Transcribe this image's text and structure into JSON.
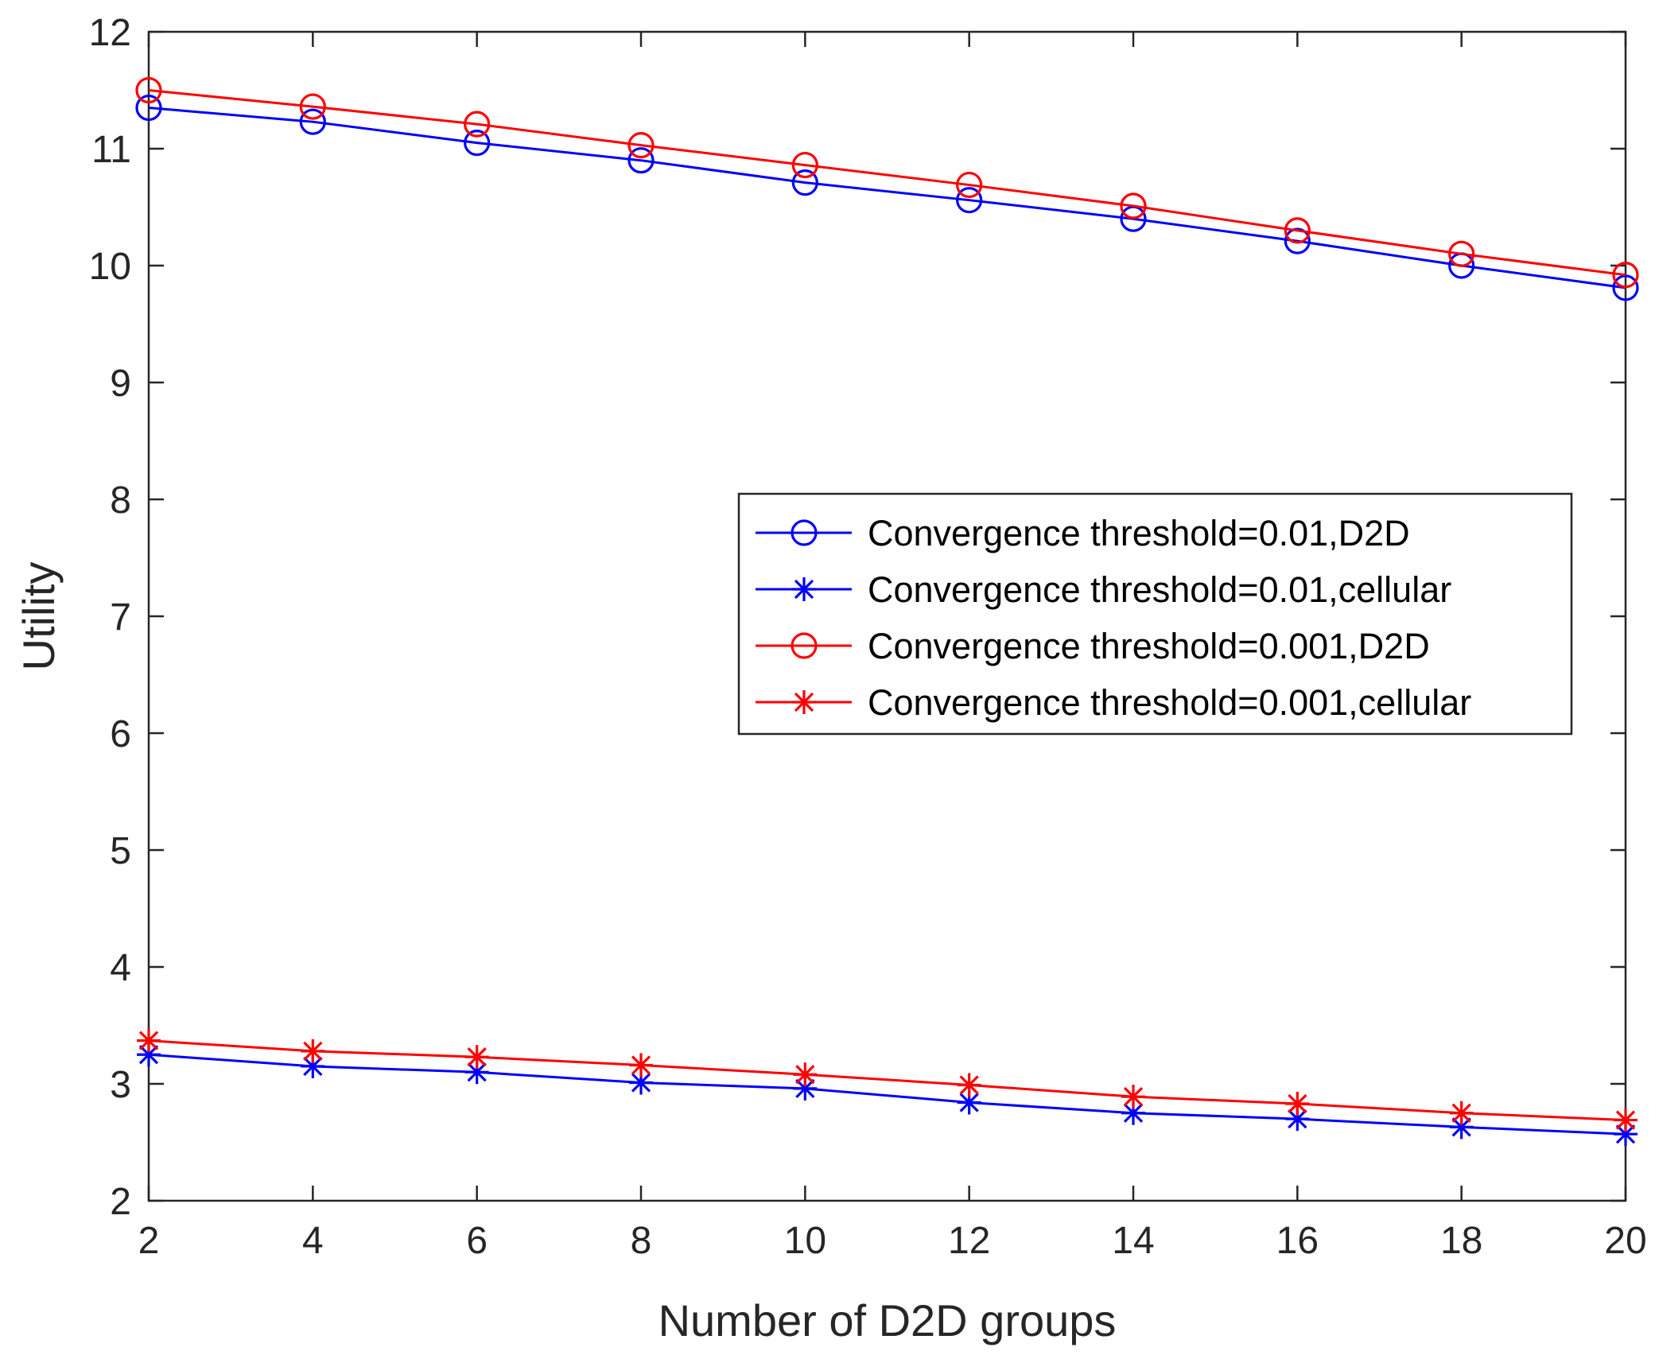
{
  "chart_data": {
    "type": "line",
    "title": "",
    "xlabel": "Number of D2D groups",
    "ylabel": "Utility",
    "xlim": [
      2,
      20
    ],
    "ylim": [
      2,
      12
    ],
    "xticks": [
      2,
      4,
      6,
      8,
      10,
      12,
      14,
      16,
      18,
      20
    ],
    "yticks": [
      2,
      3,
      4,
      5,
      6,
      7,
      8,
      9,
      10,
      11,
      12
    ],
    "grid": false,
    "legend_position": "right",
    "x": [
      2,
      4,
      6,
      8,
      10,
      12,
      14,
      16,
      18,
      20
    ],
    "series": [
      {
        "name": "Convergence threshold=0.01,D2D",
        "color": "#0000ff",
        "marker": "circle",
        "values": [
          11.35,
          11.23,
          11.05,
          10.9,
          10.71,
          10.56,
          10.4,
          10.21,
          10.0,
          9.81
        ]
      },
      {
        "name": "Convergence threshold=0.01,cellular",
        "color": "#0000ff",
        "marker": "star",
        "values": [
          3.25,
          3.15,
          3.1,
          3.01,
          2.96,
          2.84,
          2.75,
          2.7,
          2.63,
          2.57
        ]
      },
      {
        "name": "Convergence threshold=0.001,D2D",
        "color": "#ff0000",
        "marker": "circle",
        "values": [
          11.5,
          11.36,
          11.21,
          11.03,
          10.86,
          10.69,
          10.51,
          10.3,
          10.1,
          9.92
        ]
      },
      {
        "name": "Convergence threshold=0.001,cellular",
        "color": "#ff0000",
        "marker": "star",
        "values": [
          3.37,
          3.28,
          3.23,
          3.16,
          3.08,
          2.99,
          2.89,
          2.83,
          2.75,
          2.69
        ]
      }
    ]
  }
}
